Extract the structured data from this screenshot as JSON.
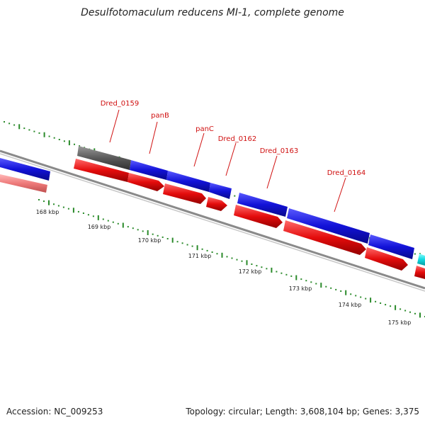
{
  "title": "Desulfotomaculum reducens MI-1, complete genome",
  "footer": {
    "accession": "Accession: NC_009253",
    "summary": "Topology: circular; Length: 3,608,104 bp; Genes: 3,375"
  },
  "colors": {
    "forward_gene": "#1a1adc",
    "reverse_gene": "#e01010",
    "faded_reverse": "#ee8080",
    "other_feature": "#606060",
    "cyan_feature": "#20e0e8",
    "label": "#d01010",
    "tick": "#2a8a2a",
    "backbone": "#7a7a7a"
  },
  "tick_labels": [
    "168 kbp",
    "169 kbp",
    "170 kbp",
    "171 kbp",
    "172 kbp",
    "173 kbp",
    "174 kbp",
    "175 kbp"
  ],
  "gene_labels": [
    "Dred_0159",
    "panB",
    "panC",
    "Dred_0162",
    "Dred_0163",
    "Dred_0164"
  ]
}
